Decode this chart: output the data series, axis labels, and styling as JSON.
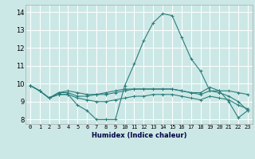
{
  "xlabel": "Humidex (Indice chaleur)",
  "xlim": [
    -0.5,
    23.5
  ],
  "ylim": [
    7.75,
    14.4
  ],
  "xticks": [
    0,
    1,
    2,
    3,
    4,
    5,
    6,
    7,
    8,
    9,
    10,
    11,
    12,
    13,
    14,
    15,
    16,
    17,
    18,
    19,
    20,
    21,
    22,
    23
  ],
  "yticks": [
    8,
    9,
    10,
    11,
    12,
    13,
    14
  ],
  "background_color": "#cce8e6",
  "grid_color": "#ffffff",
  "line_color": "#2a7d7b",
  "lines": [
    {
      "x": [
        0,
        1,
        2,
        3,
        4,
        5,
        6,
        7,
        8,
        9,
        10,
        11,
        12,
        13,
        14,
        15,
        16,
        17,
        18,
        19,
        20,
        21,
        22,
        23
      ],
      "y": [
        9.9,
        9.6,
        9.2,
        9.4,
        9.4,
        8.8,
        8.5,
        8.0,
        8.0,
        8.0,
        9.9,
        11.1,
        12.4,
        13.4,
        13.9,
        13.8,
        12.6,
        11.4,
        10.7,
        9.6,
        9.6,
        9.0,
        8.1,
        8.5
      ]
    },
    {
      "x": [
        0,
        1,
        2,
        3,
        4,
        5,
        6,
        7,
        8,
        9,
        10,
        11,
        12,
        13,
        14,
        15,
        16,
        17,
        18,
        19,
        20,
        21,
        22,
        23
      ],
      "y": [
        9.9,
        9.6,
        9.2,
        9.5,
        9.6,
        9.5,
        9.4,
        9.4,
        9.4,
        9.5,
        9.6,
        9.7,
        9.7,
        9.7,
        9.7,
        9.7,
        9.6,
        9.5,
        9.4,
        9.6,
        9.5,
        9.3,
        9.0,
        8.5
      ]
    },
    {
      "x": [
        0,
        1,
        2,
        3,
        4,
        5,
        6,
        7,
        8,
        9,
        10,
        11,
        12,
        13,
        14,
        15,
        16,
        17,
        18,
        19,
        20,
        21,
        22,
        23
      ],
      "y": [
        9.9,
        9.6,
        9.2,
        9.4,
        9.4,
        9.2,
        9.1,
        9.0,
        9.0,
        9.1,
        9.2,
        9.3,
        9.3,
        9.4,
        9.4,
        9.4,
        9.3,
        9.2,
        9.1,
        9.3,
        9.2,
        9.1,
        8.8,
        8.6
      ]
    },
    {
      "x": [
        0,
        1,
        2,
        3,
        4,
        5,
        6,
        7,
        8,
        9,
        10,
        11,
        12,
        13,
        14,
        15,
        16,
        17,
        18,
        19,
        20,
        21,
        22,
        23
      ],
      "y": [
        9.9,
        9.6,
        9.2,
        9.5,
        9.5,
        9.3,
        9.3,
        9.4,
        9.5,
        9.6,
        9.7,
        9.7,
        9.7,
        9.7,
        9.7,
        9.7,
        9.6,
        9.5,
        9.5,
        9.8,
        9.6,
        9.6,
        9.5,
        9.4
      ]
    }
  ]
}
